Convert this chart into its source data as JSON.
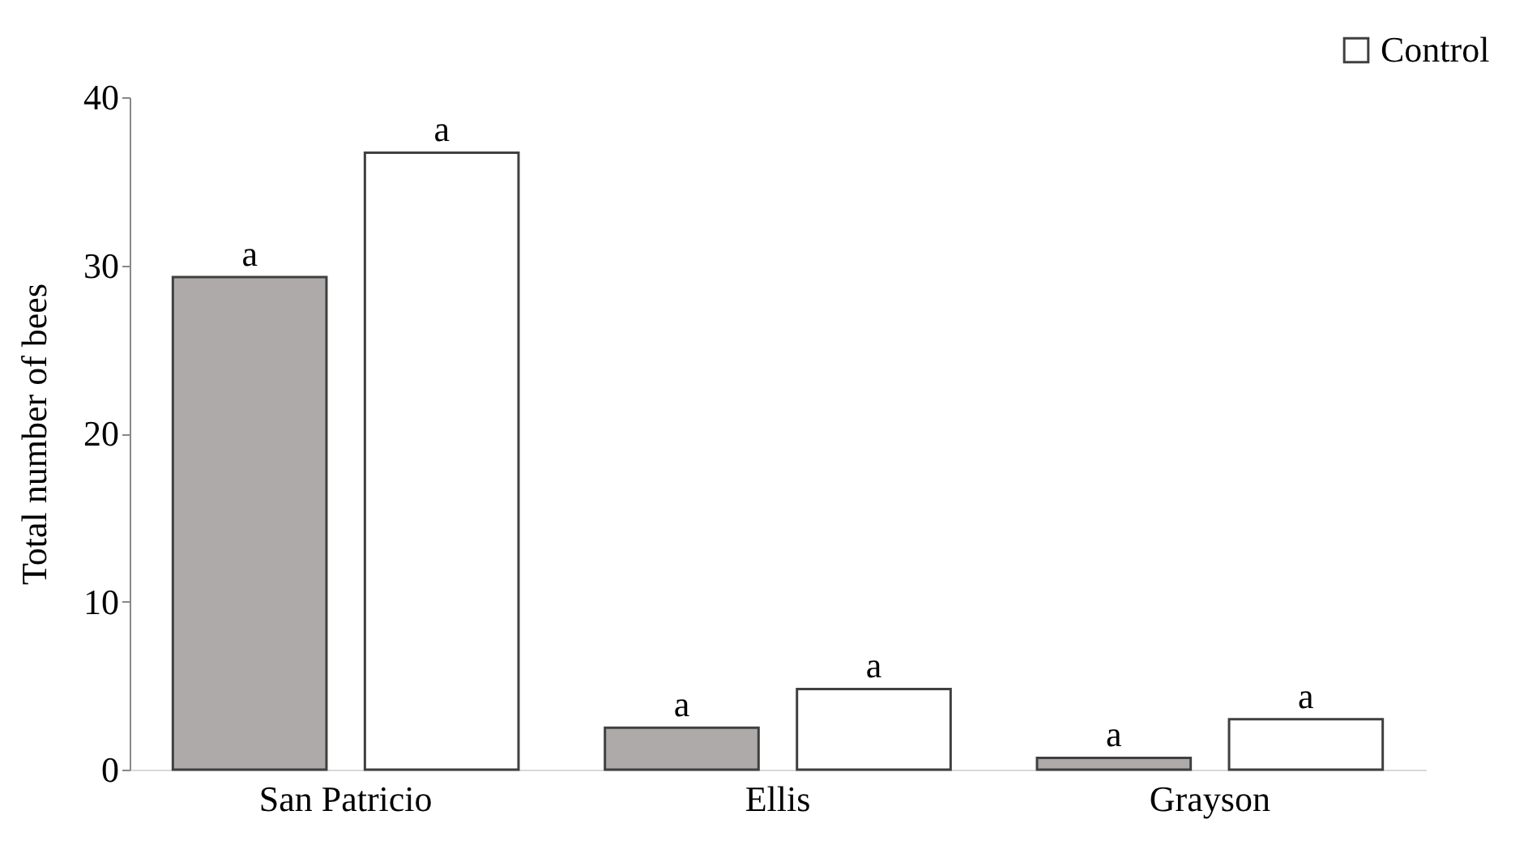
{
  "chart_data": {
    "type": "bar",
    "ylabel": "Total number of bees",
    "categories": [
      "San Patricio",
      "Ellis",
      "Grayson"
    ],
    "series": [
      {
        "color": "#aeaaaa",
        "values": [
          29.3,
          2.5,
          0.7
        ]
      },
      {
        "name": "Control",
        "color": "#ffffff",
        "values": [
          36.7,
          4.8,
          3.0
        ]
      }
    ],
    "ylim": [
      0,
      40
    ],
    "yticks": [
      0,
      10,
      20,
      30,
      40
    ],
    "grid": false,
    "legend": "top right",
    "annotations": [
      "a",
      "a",
      "a",
      "a",
      "a",
      "a"
    ]
  }
}
